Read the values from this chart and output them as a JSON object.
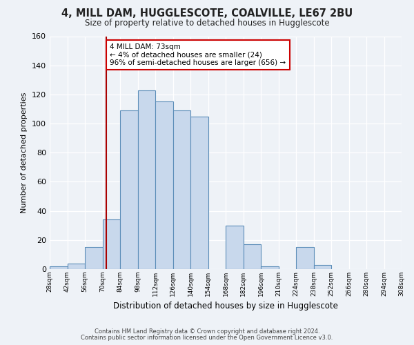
{
  "title": "4, MILL DAM, HUGGLESCOTE, COALVILLE, LE67 2BU",
  "subtitle": "Size of property relative to detached houses in Hugglescote",
  "xlabel": "Distribution of detached houses by size in Hugglescote",
  "ylabel": "Number of detached properties",
  "bar_color": "#c8d8ec",
  "bar_edge_color": "#5b8db8",
  "background_color": "#eef2f7",
  "grid_color": "#ffffff",
  "bin_edges": [
    28,
    42,
    56,
    70,
    84,
    98,
    112,
    126,
    140,
    154,
    168,
    182,
    196,
    210,
    224,
    238,
    252,
    266,
    280,
    294,
    308
  ],
  "bin_labels": [
    "28sqm",
    "42sqm",
    "56sqm",
    "70sqm",
    "84sqm",
    "98sqm",
    "112sqm",
    "126sqm",
    "140sqm",
    "154sqm",
    "168sqm",
    "182sqm",
    "196sqm",
    "210sqm",
    "224sqm",
    "238sqm",
    "252sqm",
    "266sqm",
    "280sqm",
    "294sqm",
    "308sqm"
  ],
  "counts": [
    2,
    4,
    15,
    34,
    109,
    123,
    115,
    109,
    105,
    0,
    30,
    17,
    2,
    0,
    15,
    3,
    0,
    0,
    0,
    0
  ],
  "ylim": [
    0,
    160
  ],
  "yticks": [
    0,
    20,
    40,
    60,
    80,
    100,
    120,
    140,
    160
  ],
  "property_line_x": 73,
  "ann_line1": "4 MILL DAM: 73sqm",
  "ann_line2": "← 4% of detached houses are smaller (24)",
  "ann_line3": "96% of semi-detached houses are larger (656) →",
  "annotation_box_color": "#ffffff",
  "annotation_border_color": "#cc0000",
  "footer_line1": "Contains HM Land Registry data © Crown copyright and database right 2024.",
  "footer_line2": "Contains public sector information licensed under the Open Government Licence v3.0."
}
